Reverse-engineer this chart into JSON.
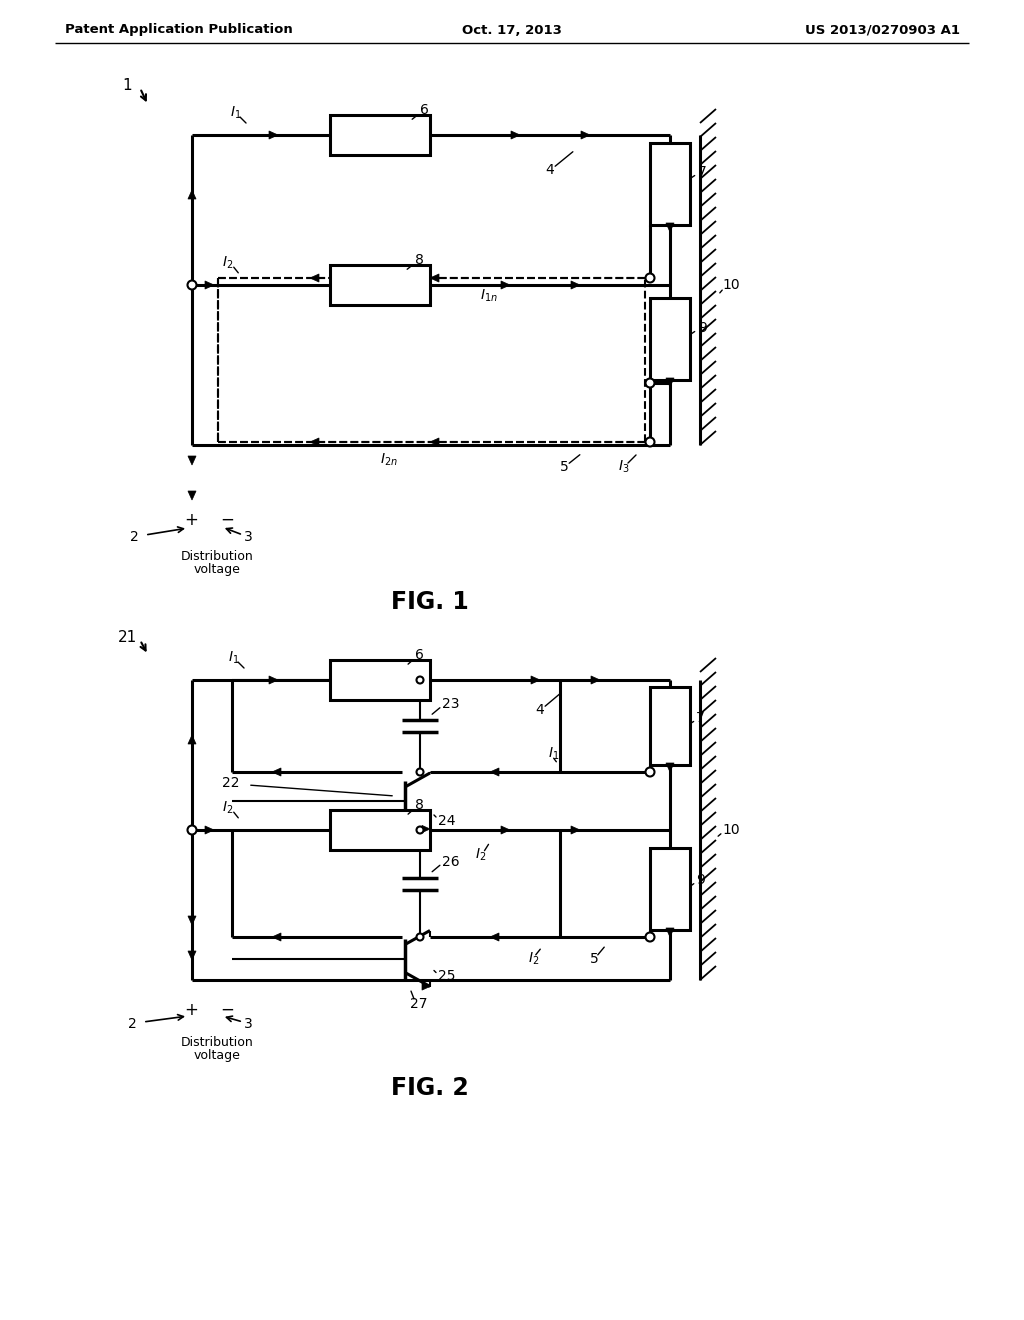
{
  "bg_color": "#ffffff",
  "header_left": "Patent Application Publication",
  "header_center": "Oct. 17, 2013",
  "header_right": "US 2013/0270903 A1"
}
